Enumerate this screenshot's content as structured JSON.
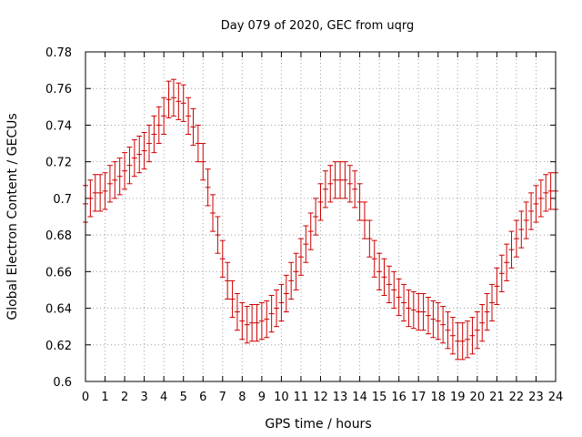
{
  "chart_data": {
    "type": "scatter",
    "title": "Day 079 of 2020, GEC from uqrg",
    "xlabel": "GPS time / hours",
    "ylabel": "Global Electron Content / GECUs",
    "xlim": [
      0,
      24
    ],
    "ylim": [
      0.6,
      0.78
    ],
    "xticks": [
      "0",
      "1",
      "2",
      "3",
      "4",
      "5",
      "6",
      "7",
      "8",
      "9",
      "10",
      "11",
      "12",
      "13",
      "14",
      "15",
      "16",
      "17",
      "18",
      "19",
      "20",
      "21",
      "22",
      "23",
      "24"
    ],
    "yticks": [
      "0.6",
      "0.62",
      "0.64",
      "0.66",
      "0.68",
      "0.7",
      "0.72",
      "0.74",
      "0.76",
      "0.78"
    ],
    "grid": true,
    "series_color": "#cc0000",
    "error_half_width": 0.01,
    "series": [
      {
        "name": "GEC",
        "x": [
          0,
          0.25,
          0.5,
          0.75,
          1,
          1.25,
          1.5,
          1.75,
          2,
          2.25,
          2.5,
          2.75,
          3,
          3.25,
          3.5,
          3.75,
          4,
          4.25,
          4.5,
          4.75,
          5,
          5.25,
          5.5,
          5.75,
          6,
          6.25,
          6.5,
          6.75,
          7,
          7.25,
          7.5,
          7.75,
          8,
          8.25,
          8.5,
          8.75,
          9,
          9.25,
          9.5,
          9.75,
          10,
          10.25,
          10.5,
          10.75,
          11,
          11.25,
          11.5,
          11.75,
          12,
          12.25,
          12.5,
          12.75,
          13,
          13.25,
          13.5,
          13.75,
          14,
          14.25,
          14.5,
          14.75,
          15,
          15.25,
          15.5,
          15.75,
          16,
          16.25,
          16.5,
          16.75,
          17,
          17.25,
          17.5,
          17.75,
          18,
          18.25,
          18.5,
          18.75,
          19,
          19.25,
          19.5,
          19.75,
          20,
          20.25,
          20.5,
          20.75,
          21,
          21.25,
          21.5,
          21.75,
          22,
          22.25,
          22.5,
          22.75,
          23,
          23.25,
          23.5,
          23.75,
          24
        ],
        "y": [
          0.697,
          0.7,
          0.703,
          0.703,
          0.704,
          0.708,
          0.71,
          0.712,
          0.715,
          0.718,
          0.722,
          0.724,
          0.726,
          0.73,
          0.735,
          0.74,
          0.745,
          0.754,
          0.755,
          0.753,
          0.752,
          0.745,
          0.739,
          0.73,
          0.72,
          0.706,
          0.692,
          0.68,
          0.667,
          0.655,
          0.645,
          0.638,
          0.633,
          0.631,
          0.632,
          0.632,
          0.633,
          0.634,
          0.637,
          0.64,
          0.643,
          0.648,
          0.655,
          0.66,
          0.668,
          0.675,
          0.682,
          0.69,
          0.698,
          0.705,
          0.708,
          0.71,
          0.71,
          0.71,
          0.708,
          0.705,
          0.698,
          0.688,
          0.678,
          0.667,
          0.66,
          0.657,
          0.653,
          0.65,
          0.646,
          0.643,
          0.64,
          0.639,
          0.638,
          0.638,
          0.636,
          0.634,
          0.633,
          0.631,
          0.628,
          0.625,
          0.622,
          0.622,
          0.623,
          0.625,
          0.628,
          0.632,
          0.638,
          0.643,
          0.652,
          0.659,
          0.665,
          0.672,
          0.678,
          0.683,
          0.688,
          0.693,
          0.697,
          0.7,
          0.703,
          0.704,
          0.704
        ]
      }
    ]
  }
}
